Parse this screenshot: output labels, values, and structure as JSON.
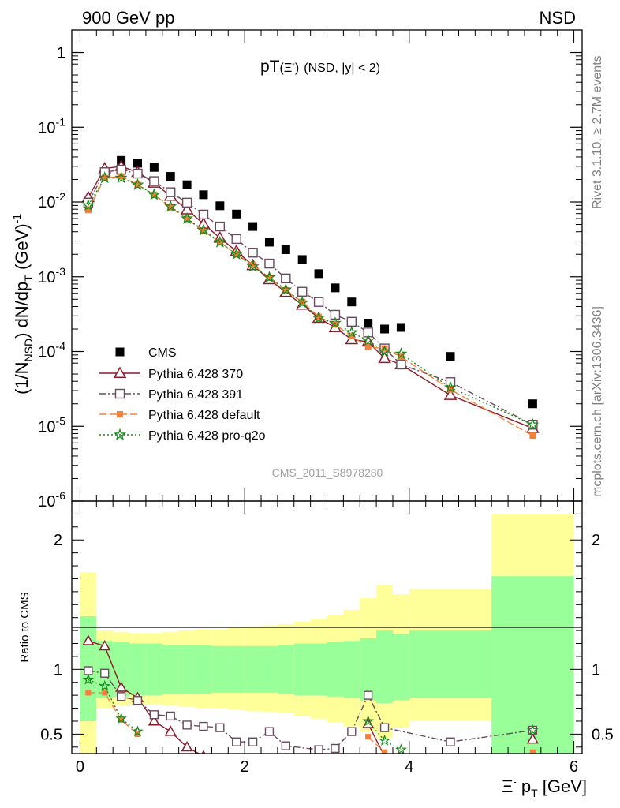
{
  "header": {
    "left": "900 GeV pp",
    "right": "NSD"
  },
  "plot_title": {
    "main": "pT",
    "particle": "(Ξ",
    "sup": "-",
    "close": ")",
    "cut": "(NSD, |y| < 2)"
  },
  "side_labels": {
    "rivet": "Rivet 3.1.10, ≥ 2.7M events",
    "mcplots": "mcplots.cern.ch [arXiv:1306.3436]"
  },
  "analysis_label": "CMS_2011_S8978280",
  "colors": {
    "cms": "#000000",
    "p370": "#8b1a2b",
    "p391": "#6a4a5e",
    "pdefault": "#f4813b",
    "pq2o": "#1a8a1a",
    "band_inner": "#99ff99",
    "band_outer": "#ffff99"
  },
  "chart_data": [
    {
      "type": "line",
      "yscale": "log",
      "ylabel": "(1/N_NSD) dN/dp_T (GeV)^-1",
      "ylim": [
        1e-06,
        2
      ],
      "xlim": [
        -0.1,
        6.1
      ],
      "ytick_labels": [
        "1",
        "10-1",
        "10-2",
        "10-3",
        "10-4",
        "10-5",
        "10-6"
      ],
      "legend": {
        "placement": "bottom-left"
      },
      "series": [
        {
          "name": "CMS",
          "key": "cms",
          "style": "square-filled",
          "x": [
            0.1,
            0.3,
            0.5,
            0.7,
            0.9,
            1.1,
            1.3,
            1.5,
            1.7,
            1.9,
            2.1,
            2.3,
            2.5,
            2.7,
            2.9,
            3.1,
            3.3,
            3.5,
            3.7,
            3.9,
            4.5,
            5.5
          ],
          "y": [
            0.0098,
            0.025,
            0.036,
            0.033,
            0.029,
            0.022,
            0.017,
            0.0125,
            0.0089,
            0.0069,
            0.0047,
            0.0029,
            0.0023,
            0.0017,
            0.0011,
            0.00071,
            0.00046,
            0.00024,
            0.0002,
            0.00021,
            8.6e-05,
            2e-05
          ]
        },
        {
          "name": "Pythia 6.428 370",
          "key": "p370",
          "style": "triangle-open-solid",
          "x": [
            0.1,
            0.3,
            0.5,
            0.7,
            0.9,
            1.1,
            1.3,
            1.5,
            1.7,
            1.9,
            2.1,
            2.3,
            2.5,
            2.7,
            2.9,
            3.1,
            3.3,
            3.5,
            3.7,
            3.9,
            4.5,
            5.5
          ],
          "y": [
            0.0115,
            0.028,
            0.03,
            0.025,
            0.018,
            0.012,
            0.0079,
            0.0051,
            0.0033,
            0.0022,
            0.00142,
            0.00092,
            0.00062,
            0.00042,
            0.00028,
            0.00021,
            0.000145,
            0.000135,
            8.1e-05,
            6.7e-05,
            2.6e-05,
            9.4e-06
          ]
        },
        {
          "name": "Pythia 6.428 391",
          "key": "p391",
          "style": "square-open-dashdot",
          "x": [
            0.1,
            0.3,
            0.5,
            0.7,
            0.9,
            1.1,
            1.3,
            1.5,
            1.7,
            1.9,
            2.1,
            2.3,
            2.5,
            2.7,
            2.9,
            3.1,
            3.3,
            3.5,
            3.7,
            3.9,
            4.5,
            5.5
          ],
          "y": [
            0.0098,
            0.025,
            0.027,
            0.024,
            0.019,
            0.0135,
            0.0098,
            0.0068,
            0.0047,
            0.0032,
            0.0021,
            0.0015,
            0.00095,
            0.00063,
            0.00046,
            0.00031,
            0.00025,
            0.00018,
            0.00011,
            6.7e-05,
            3.9e-05,
            1.05e-05
          ]
        },
        {
          "name": "Pythia 6.428 default",
          "key": "pdefault",
          "style": "square-filled-dashed",
          "x": [
            0.1,
            0.3,
            0.5,
            0.7,
            0.9,
            1.1,
            1.3,
            1.5,
            1.7,
            1.9,
            2.1,
            2.3,
            2.5,
            2.7,
            2.9,
            3.1,
            3.3,
            3.5,
            3.7,
            3.9,
            4.5,
            5.5
          ],
          "y": [
            0.0078,
            0.021,
            0.022,
            0.017,
            0.0125,
            0.0085,
            0.0059,
            0.0041,
            0.0029,
            0.002,
            0.00143,
            0.00097,
            0.00066,
            0.00046,
            0.00029,
            0.00023,
            0.00016,
            0.000115,
            0.00011,
            8.5e-05,
            3.1e-05,
            7.5e-06
          ]
        },
        {
          "name": "Pythia 6.428 pro-q2o",
          "key": "pq2o",
          "style": "star-dotted",
          "x": [
            0.1,
            0.3,
            0.5,
            0.7,
            0.9,
            1.1,
            1.3,
            1.5,
            1.7,
            1.9,
            2.1,
            2.3,
            2.5,
            2.7,
            2.9,
            3.1,
            3.3,
            3.5,
            3.7,
            3.9,
            4.5,
            5.5
          ],
          "y": [
            0.009,
            0.021,
            0.021,
            0.017,
            0.0125,
            0.0087,
            0.006,
            0.0042,
            0.0029,
            0.002,
            0.00137,
            0.00098,
            0.00067,
            0.00045,
            0.00028,
            0.00024,
            0.00018,
            0.00014,
            0.0001,
            9.3e-05,
            3.3e-05,
            1.05e-05
          ]
        }
      ]
    },
    {
      "type": "line",
      "ylabel": "Ratio to CMS",
      "xlabel": "Ξ- pT [GeV]",
      "ylim": [
        0.35,
        2.3
      ],
      "xlim": [
        -0.1,
        6.1
      ],
      "xticks": [
        0,
        2,
        4,
        6
      ],
      "yticks": [
        0.5,
        1,
        2
      ],
      "bands": {
        "edges": [
          0.0,
          0.2,
          0.4,
          0.6,
          0.8,
          1.0,
          1.2,
          1.4,
          1.6,
          1.8,
          2.0,
          2.2,
          2.4,
          2.6,
          2.8,
          3.0,
          3.2,
          3.4,
          3.6,
          3.8,
          4.0,
          5.0,
          6.0
        ],
        "inner_lo": [
          0.6,
          0.78,
          0.79,
          0.8,
          0.8,
          0.81,
          0.81,
          0.81,
          0.82,
          0.82,
          0.82,
          0.82,
          0.81,
          0.8,
          0.8,
          0.79,
          0.78,
          0.76,
          0.74,
          0.76,
          0.78,
          0.3
        ],
        "inner_hi": [
          1.41,
          1.22,
          1.21,
          1.2,
          1.2,
          1.19,
          1.19,
          1.19,
          1.18,
          1.18,
          1.18,
          1.18,
          1.19,
          1.2,
          1.2,
          1.21,
          1.22,
          1.24,
          1.3,
          1.27,
          1.3,
          1.72
        ],
        "outer_lo": [
          0.25,
          0.7,
          0.72,
          0.73,
          0.73,
          0.72,
          0.71,
          0.7,
          0.7,
          0.69,
          0.68,
          0.67,
          0.66,
          0.64,
          0.62,
          0.59,
          0.56,
          0.52,
          0.47,
          0.55,
          0.6,
          0.3
        ],
        "outer_hi": [
          1.75,
          1.3,
          1.29,
          1.28,
          1.28,
          1.29,
          1.3,
          1.31,
          1.31,
          1.32,
          1.33,
          1.34,
          1.35,
          1.37,
          1.39,
          1.42,
          1.46,
          1.55,
          1.65,
          1.58,
          1.62,
          2.2
        ]
      },
      "series": [
        {
          "name": "Pythia 6.428 370",
          "key": "p370",
          "style": "triangle-open-solid",
          "x": [
            0.1,
            0.3,
            0.5,
            0.7,
            0.9,
            1.1,
            1.3,
            1.5,
            3.5,
            3.7,
            5.5
          ],
          "y": [
            1.22,
            1.18,
            0.86,
            0.78,
            0.6,
            0.52,
            0.4,
            0.33,
            0.58,
            0.33,
            0.46
          ],
          "segments": [
            [
              0,
              7
            ],
            [
              8,
              9
            ],
            [
              10,
              10
            ]
          ]
        },
        {
          "name": "Pythia 6.428 391",
          "key": "p391",
          "style": "square-open-dashdot",
          "x": [
            0.1,
            0.3,
            0.5,
            0.7,
            0.9,
            1.1,
            1.3,
            1.5,
            1.7,
            1.9,
            2.1,
            2.3,
            2.5,
            2.9,
            3.1,
            3.3,
            3.5,
            3.7,
            4.5,
            5.5
          ],
          "y": [
            0.99,
            0.97,
            0.79,
            0.76,
            0.65,
            0.64,
            0.57,
            0.56,
            0.55,
            0.44,
            0.44,
            0.52,
            0.41,
            0.38,
            0.39,
            0.52,
            0.8,
            0.55,
            0.44,
            0.53
          ]
        },
        {
          "name": "Pythia 6.428 default",
          "key": "pdefault",
          "style": "square-filled-dashed",
          "x": [
            0.1,
            0.3,
            0.5,
            0.7,
            3.5,
            3.7,
            5.5
          ],
          "y": [
            0.82,
            0.82,
            0.61,
            0.5,
            0.48,
            0.36,
            0.36
          ],
          "segments": [
            [
              0,
              3
            ],
            [
              4,
              5
            ],
            [
              6,
              6
            ]
          ]
        },
        {
          "name": "Pythia 6.428 pro-q2o",
          "key": "pq2o",
          "style": "star-dotted",
          "x": [
            0.1,
            0.3,
            0.5,
            0.7,
            3.5,
            3.7,
            3.9,
            5.5
          ],
          "y": [
            0.92,
            0.87,
            0.62,
            0.52,
            0.6,
            0.45,
            0.38,
            0.53
          ],
          "segments": [
            [
              0,
              3
            ],
            [
              4,
              6
            ],
            [
              7,
              7
            ]
          ]
        }
      ]
    }
  ]
}
